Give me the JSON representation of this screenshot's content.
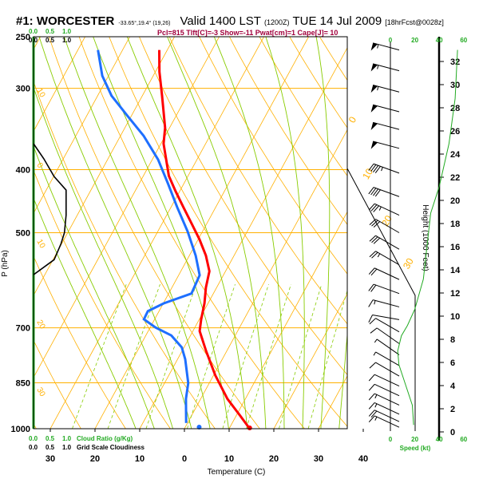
{
  "header": {
    "station": "#1: WORCESTER",
    "coords": "-33.65°,19.4° (19,26)",
    "valid": "Valid 1400 LST",
    "utc": "(1200Z)",
    "date": "TUE 14 Jul 2009",
    "forecast": "[18hrFcst@0028z]",
    "indices": "Pcl=815 Tlft[C]=-3 Show=-11 Pwat[cm]=1 Cape[J]= 10"
  },
  "colors": {
    "temp": "#ff0000",
    "dewpoint": "#1e6fff",
    "iso": "#ffb000",
    "moist": "#88cc00",
    "green": "#22aa22",
    "index": "#a0003c"
  },
  "chart_data": {
    "type": "line",
    "title": "Skew-T log-P sounding",
    "xlabel": "Temperature (C)",
    "ylabel": "P (hPa)",
    "xlim": [
      -35,
      45
    ],
    "ylim": [
      1000,
      250
    ],
    "x_ticks": [
      "30",
      "20",
      "10",
      "0",
      "10",
      "20",
      "30",
      "40"
    ],
    "x_tick_values": [
      -30,
      -20,
      -10,
      0,
      10,
      20,
      30,
      40
    ],
    "y_ticks": [
      "250",
      "300",
      "400",
      "500",
      "700",
      "850",
      "1000"
    ],
    "y_tick_values": [
      250,
      300,
      400,
      500,
      700,
      850,
      1000
    ],
    "adiabat_labels": [
      {
        "text": "10",
        "p": 302
      },
      {
        "text": "0",
        "p": 393
      },
      {
        "text": "10",
        "p": 515
      },
      {
        "text": "20",
        "p": 685
      },
      {
        "text": "30",
        "p": 870
      }
    ],
    "isotherm_labels": [
      {
        "text": "0",
        "t": 0,
        "p": 340
      },
      {
        "text": "10",
        "t": 10,
        "p": 415
      },
      {
        "text": "20",
        "t": 20,
        "p": 490
      },
      {
        "text": "30",
        "t": 30,
        "p": 570
      }
    ],
    "series": [
      {
        "name": "Temperature",
        "p": [
          1000,
          953,
          900,
          828,
          760,
          708,
          679,
          642,
          607,
          573,
          542,
          512,
          484,
          457,
          432,
          409,
          365,
          345,
          308,
          283,
          262
        ],
        "t": [
          14.6,
          10.7,
          6.0,
          0.4,
          -4.6,
          -8.5,
          -9.6,
          -10.8,
          -12.4,
          -13.6,
          -16.3,
          -19.7,
          -23.4,
          -27.2,
          -30.9,
          -34.3,
          -39.4,
          -41.0,
          -45.6,
          -49.1,
          -51.8
        ]
      },
      {
        "name": "Dewpoint",
        "p": [
          980,
          900,
          851,
          782,
          750,
          719,
          699,
          679,
          660,
          642,
          620,
          581,
          542,
          498,
          457,
          420,
          386,
          355,
          331,
          308,
          287,
          262
        ],
        "t": [
          -0.3,
          -3.3,
          -4.7,
          -8.3,
          -10.5,
          -14.3,
          -18.8,
          -22.4,
          -22.5,
          -19.9,
          -14.9,
          -15.3,
          -18.6,
          -23.3,
          -28.6,
          -33.6,
          -38.7,
          -44.8,
          -50.8,
          -56.9,
          -61.4,
          -65.5
        ]
      }
    ],
    "surface_points": [
      {
        "name": "surface-temp",
        "p": 1000,
        "t": 14.6
      },
      {
        "name": "surface-dewpoint",
        "p": 1000,
        "t": 3.3
      }
    ],
    "grid_cloudiness": {
      "p": [
        365,
        385,
        410,
        430,
        470,
        500,
        520,
        550,
        580
      ],
      "value": [
        0.0,
        0.3,
        0.6,
        0.95,
        0.95,
        0.9,
        0.8,
        0.6,
        0.0
      ]
    },
    "cloud_ratio": {
      "p": [
        250,
        1000
      ],
      "value": [
        0.0,
        0.0
      ]
    },
    "cloud_scale_labels": [
      "0.0",
      "0.5",
      "1.0"
    ],
    "cloud_ratio_label": "Cloud Ratio (g/Kg)",
    "cloudiness_label": "Grid Scale Cloudiness",
    "winds": [
      {
        "p": 262,
        "kt": 55,
        "dir": 285
      },
      {
        "p": 282,
        "kt": 55,
        "dir": 285
      },
      {
        "p": 304,
        "kt": 53,
        "dir": 285
      },
      {
        "p": 326,
        "kt": 50,
        "dir": 285
      },
      {
        "p": 347,
        "kt": 50,
        "dir": 285
      },
      {
        "p": 371,
        "kt": 48,
        "dir": 285
      },
      {
        "p": 405,
        "kt": 45,
        "dir": 290
      },
      {
        "p": 440,
        "kt": 40,
        "dir": 290
      },
      {
        "p": 470,
        "kt": 35,
        "dir": 295
      },
      {
        "p": 500,
        "kt": 30,
        "dir": 300
      },
      {
        "p": 530,
        "kt": 28,
        "dir": 300
      },
      {
        "p": 560,
        "kt": 25,
        "dir": 300
      },
      {
        "p": 590,
        "kt": 22,
        "dir": 295
      },
      {
        "p": 620,
        "kt": 20,
        "dir": 290
      },
      {
        "p": 650,
        "kt": 15,
        "dir": 285
      },
      {
        "p": 680,
        "kt": 12,
        "dir": 280
      },
      {
        "p": 710,
        "kt": 10,
        "dir": 300
      },
      {
        "p": 740,
        "kt": 8,
        "dir": 305
      },
      {
        "p": 770,
        "kt": 7,
        "dir": 305
      },
      {
        "p": 800,
        "kt": 6,
        "dir": 300
      },
      {
        "p": 830,
        "kt": 8,
        "dir": 300
      },
      {
        "p": 860,
        "kt": 10,
        "dir": 295
      },
      {
        "p": 890,
        "kt": 12,
        "dir": 295
      },
      {
        "p": 920,
        "kt": 14,
        "dir": 295
      },
      {
        "p": 950,
        "kt": 16,
        "dir": 295
      },
      {
        "p": 975,
        "kt": 18,
        "dir": 295
      },
      {
        "p": 995,
        "kt": 17,
        "dir": 295
      }
    ],
    "wind_profile": {
      "xlabel": "Speed (kt)",
      "ylabel": "Height (1000 Feet)",
      "speed_ticks": [
        "0",
        "20",
        "40",
        "60"
      ],
      "speed_tick_values": [
        0,
        20,
        40,
        60
      ],
      "height_ticks": [
        "0",
        "2",
        "4",
        "6",
        "8",
        "10",
        "12",
        "14",
        "16",
        "18",
        "20",
        "22",
        "24",
        "26",
        "28",
        "30",
        "32"
      ],
      "height_kft": [
        0.6,
        2.3,
        4.2,
        5.8,
        7.0,
        8.3,
        9.2,
        10.6,
        13.2,
        18.9,
        21.2,
        24.9,
        28.8,
        33
      ],
      "speed_kt": [
        19,
        18,
        12,
        7,
        6,
        9,
        14,
        20,
        27,
        33,
        40,
        48,
        53,
        55
      ]
    }
  }
}
